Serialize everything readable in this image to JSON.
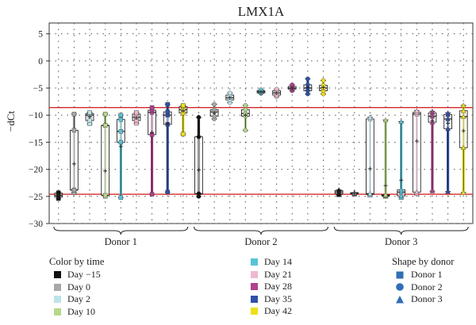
{
  "chart_data": {
    "type": "box",
    "title": "LMX1A",
    "ylabel": "−dCt",
    "xlabel": "",
    "ylim": [
      -30,
      7
    ],
    "yticks": [
      5,
      0,
      -5,
      -10,
      -15,
      -20,
      -25,
      -30
    ],
    "ytick_labels": [
      "5",
      "0",
      "−5",
      "−10",
      "−15",
      "−20",
      "−25",
      "−30"
    ],
    "reference_lines": [
      -8.6,
      -24.6
    ],
    "reference_line_color": "#d62728",
    "grid": "dotted",
    "groups": [
      {
        "name": "Donor 1",
        "first_box": 0,
        "last_box": 8
      },
      {
        "name": "Donor 2",
        "first_box": 9,
        "last_box": 17
      },
      {
        "name": "Donor 3",
        "first_box": 18,
        "last_box": 26
      }
    ],
    "times": [
      "Day −15",
      "Day 0",
      "Day 2",
      "Day 10",
      "Day 14",
      "Day 21",
      "Day 28",
      "Day 35",
      "Day 42"
    ],
    "time_colors": [
      "#111111",
      "#a8a8a8",
      "#bde3ea",
      "#b6d88a",
      "#59c3d6",
      "#f0b8d0",
      "#b0418f",
      "#3050a8",
      "#eee017"
    ],
    "donor_shapes": [
      "square",
      "circle",
      "triangle"
    ],
    "boxes": [
      {
        "donor": "Donor 1",
        "time": "Day −15",
        "min": -25.4,
        "q1": -25.1,
        "median": -24.8,
        "q3": -24.4,
        "max": -24.3,
        "mean": -24.8
      },
      {
        "donor": "Donor 1",
        "time": "Day 0",
        "min": -24.3,
        "q1": -23.8,
        "median": -23.8,
        "q3": -12.8,
        "max": -9.8,
        "mean": -19.0
      },
      {
        "donor": "Donor 1",
        "time": "Day 2",
        "min": -11.6,
        "q1": -11.0,
        "median": -10.0,
        "q3": -9.7,
        "max": -9.5,
        "mean": -10.3
      },
      {
        "donor": "Donor 1",
        "time": "Day 10",
        "min": -25.0,
        "q1": -24.8,
        "median": -11.9,
        "q3": -11.9,
        "max": -9.8,
        "mean": -20.3
      },
      {
        "donor": "Donor 1",
        "time": "Day 14",
        "min": -25.2,
        "q1": -15.0,
        "median": -13.0,
        "q3": -10.8,
        "max": -10.0,
        "mean": -15.8
      },
      {
        "donor": "Donor 1",
        "time": "Day 21",
        "min": -11.5,
        "q1": -11.0,
        "median": -10.4,
        "q3": -9.8,
        "max": -9.5,
        "mean": -10.5
      },
      {
        "donor": "Donor 1",
        "time": "Day 28",
        "min": -24.6,
        "q1": -13.6,
        "median": -9.5,
        "q3": -9.1,
        "max": -8.6,
        "mean": -13.2
      },
      {
        "donor": "Donor 1",
        "time": "Day 35",
        "min": -24.2,
        "q1": -11.7,
        "median": -10.0,
        "q3": -9.4,
        "max": -8.0,
        "mean": -11.6
      },
      {
        "donor": "Donor 1",
        "time": "Day 42",
        "min": -13.5,
        "q1": -9.6,
        "median": -9.0,
        "q3": -8.4,
        "max": -8.2,
        "mean": -9.2
      },
      {
        "donor": "Donor 2",
        "time": "Day −15",
        "min": -25.0,
        "q1": -24.5,
        "median": -24.5,
        "q3": -14.0,
        "max": -10.4,
        "mean": -20.1
      },
      {
        "donor": "Donor 2",
        "time": "Day 0",
        "min": -10.7,
        "q1": -10.2,
        "median": -9.4,
        "q3": -9.0,
        "max": -8.0,
        "mean": -9.6
      },
      {
        "donor": "Donor 2",
        "time": "Day 2",
        "min": -7.7,
        "q1": -7.2,
        "median": -6.8,
        "q3": -6.3,
        "max": -5.9,
        "mean": -6.8
      },
      {
        "donor": "Donor 2",
        "time": "Day 10",
        "min": -12.8,
        "q1": -10.2,
        "median": -9.7,
        "q3": -9.0,
        "max": -8.2,
        "mean": -10.0
      },
      {
        "donor": "Donor 2",
        "time": "Day 14",
        "min": -6.0,
        "q1": -5.9,
        "median": -5.7,
        "q3": -5.5,
        "max": -5.3,
        "mean": -5.7
      },
      {
        "donor": "Donor 2",
        "time": "Day 21",
        "min": -6.6,
        "q1": -6.3,
        "median": -5.9,
        "q3": -5.5,
        "max": -5.2,
        "mean": -5.9
      },
      {
        "donor": "Donor 2",
        "time": "Day 28",
        "min": -5.5,
        "q1": -5.2,
        "median": -5.0,
        "q3": -4.7,
        "max": -4.4,
        "mean": -5.0
      },
      {
        "donor": "Donor 2",
        "time": "Day 35",
        "min": -6.1,
        "q1": -5.5,
        "median": -5.0,
        "q3": -4.4,
        "max": -3.3,
        "mean": -4.9
      },
      {
        "donor": "Donor 2",
        "time": "Day 42",
        "min": -6.1,
        "q1": -5.5,
        "median": -5.0,
        "q3": -4.5,
        "max": -3.6,
        "mean": -4.9
      },
      {
        "donor": "Donor 3",
        "time": "Day −15",
        "min": -24.7,
        "q1": -24.5,
        "median": -24.2,
        "q3": -23.9,
        "max": -23.8,
        "mean": -24.2
      },
      {
        "donor": "Donor 3",
        "time": "Day 0",
        "min": -24.6,
        "q1": -24.5,
        "median": -24.4,
        "q3": -24.3,
        "max": -24.3,
        "mean": -24.4
      },
      {
        "donor": "Donor 3",
        "time": "Day 2",
        "min": -24.8,
        "q1": -24.6,
        "median": -24.5,
        "q3": -10.7,
        "max": -10.4,
        "mean": -19.9
      },
      {
        "donor": "Donor 3",
        "time": "Day 10",
        "min": -25.0,
        "q1": -24.9,
        "median": -24.8,
        "q3": -24.7,
        "max": -10.9,
        "mean": -23.0
      },
      {
        "donor": "Donor 3",
        "time": "Day 14",
        "min": -25.2,
        "q1": -24.9,
        "median": -24.2,
        "q3": -23.8,
        "max": -11.2,
        "mean": -22.0
      },
      {
        "donor": "Donor 3",
        "time": "Day 21",
        "min": -24.5,
        "q1": -24.2,
        "median": -9.8,
        "q3": -9.5,
        "max": -9.2,
        "mean": -14.8
      },
      {
        "donor": "Donor 3",
        "time": "Day 28",
        "min": -24.0,
        "q1": -11.3,
        "median": -10.2,
        "q3": -9.6,
        "max": -9.3,
        "mean": -11.0
      },
      {
        "donor": "Donor 3",
        "time": "Day 35",
        "min": -24.1,
        "q1": -12.5,
        "median": -10.7,
        "q3": -9.9,
        "max": -9.6,
        "mean": -11.5
      },
      {
        "donor": "Donor 3",
        "time": "Day 42",
        "min": -24.3,
        "q1": -16.0,
        "median": -10.3,
        "q3": -9.2,
        "max": -8.2,
        "mean": -12.9
      }
    ]
  },
  "legend": {
    "time_title": "Color by time",
    "time_items": [
      {
        "label": "Day −15",
        "color": "#111111"
      },
      {
        "label": "Day 0",
        "color": "#a8a8a8"
      },
      {
        "label": "Day 2",
        "color": "#bde3ea"
      },
      {
        "label": "Day 10",
        "color": "#b6d88a"
      },
      {
        "label": "Day 14",
        "color": "#59c3d6"
      },
      {
        "label": "Day 21",
        "color": "#f0b8d0"
      },
      {
        "label": "Day 28",
        "color": "#b0418f"
      },
      {
        "label": "Day 35",
        "color": "#3050a8"
      },
      {
        "label": "Day 42",
        "color": "#eee017"
      }
    ],
    "shape_title": "Shape by donor",
    "shape_items": [
      {
        "label": "Donor 1",
        "icon": "square-icon",
        "color": "#2f6fb5"
      },
      {
        "label": "Donor 2",
        "icon": "circle-icon",
        "color": "#2f6fb5"
      },
      {
        "label": "Donor 3",
        "icon": "triangle-icon",
        "color": "#2f6fb5"
      }
    ]
  }
}
